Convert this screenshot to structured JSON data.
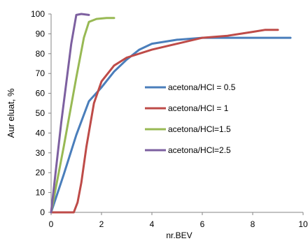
{
  "chart_data": {
    "type": "line",
    "title": "",
    "xlabel": "nr.BEV",
    "ylabel": "Aur eluat, %",
    "xlim": [
      0,
      10
    ],
    "ylim": [
      0,
      100
    ],
    "x_ticks": [
      0,
      2,
      4,
      6,
      8,
      10
    ],
    "y_ticks": [
      0,
      10,
      20,
      30,
      40,
      50,
      60,
      70,
      80,
      90,
      100
    ],
    "grid": false,
    "legend_position": "right-center",
    "series": [
      {
        "name": "acetona/HCl = 0.5",
        "color": "#4a7ebb",
        "points": [
          [
            0,
            0
          ],
          [
            0.5,
            19
          ],
          [
            1,
            39
          ],
          [
            1.5,
            56
          ],
          [
            2,
            63
          ],
          [
            2.5,
            71
          ],
          [
            3,
            77
          ],
          [
            3.5,
            82
          ],
          [
            4,
            85
          ],
          [
            5,
            87
          ],
          [
            6,
            88
          ],
          [
            7,
            88
          ],
          [
            8,
            88
          ],
          [
            9,
            88
          ],
          [
            9.5,
            88
          ]
        ]
      },
      {
        "name": "acetona/HCl = 1",
        "color": "#be4b48",
        "points": [
          [
            0,
            0
          ],
          [
            0.5,
            0
          ],
          [
            0.9,
            0
          ],
          [
            1.05,
            5
          ],
          [
            1.2,
            15
          ],
          [
            1.4,
            33
          ],
          [
            1.7,
            55
          ],
          [
            2,
            66
          ],
          [
            2.5,
            74
          ],
          [
            3,
            78
          ],
          [
            4,
            82
          ],
          [
            5,
            85
          ],
          [
            6,
            88
          ],
          [
            7,
            89
          ],
          [
            8,
            91
          ],
          [
            8.5,
            92
          ],
          [
            9,
            92
          ]
        ]
      },
      {
        "name": "acetona/HCl=1.5",
        "color": "#98b954",
        "points": [
          [
            0,
            0
          ],
          [
            0.5,
            33
          ],
          [
            1,
            68
          ],
          [
            1.3,
            88
          ],
          [
            1.5,
            96
          ],
          [
            1.8,
            97.5
          ],
          [
            2.2,
            98
          ],
          [
            2.5,
            98
          ]
        ]
      },
      {
        "name": "acetona/HCl=2.5",
        "color": "#7d60a0",
        "points": [
          [
            0,
            0
          ],
          [
            0.4,
            45
          ],
          [
            0.8,
            85
          ],
          [
            1,
            99.5
          ],
          [
            1.2,
            100
          ],
          [
            1.5,
            99.5
          ]
        ]
      }
    ]
  }
}
